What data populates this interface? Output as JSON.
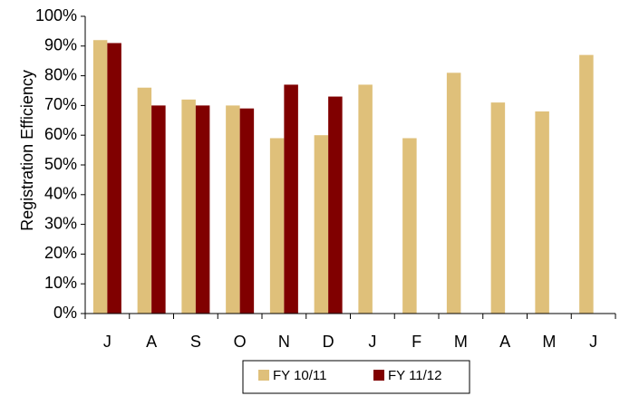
{
  "chart_data": {
    "type": "bar",
    "ylabel": "Registration Efficiency",
    "xlabel": "",
    "ylim": [
      0,
      100
    ],
    "y_tick_step": 10,
    "y_tick_labels": [
      "0%",
      "10%",
      "20%",
      "30%",
      "40%",
      "50%",
      "60%",
      "70%",
      "80%",
      "90%",
      "100%"
    ],
    "categories": [
      "J",
      "A",
      "S",
      "O",
      "N",
      "D",
      "J",
      "F",
      "M",
      "A",
      "M",
      "J"
    ],
    "series": [
      {
        "name": "FY 10/11",
        "color": "#DFC07A",
        "values": [
          92,
          76,
          72,
          70,
          59,
          60,
          77,
          59,
          81,
          71,
          68,
          87
        ]
      },
      {
        "name": "FY 11/12",
        "color": "#800000",
        "values": [
          91,
          70,
          70,
          69,
          77,
          73,
          null,
          null,
          null,
          null,
          null,
          null
        ]
      }
    ],
    "legend_position": "bottom",
    "grid": false
  }
}
